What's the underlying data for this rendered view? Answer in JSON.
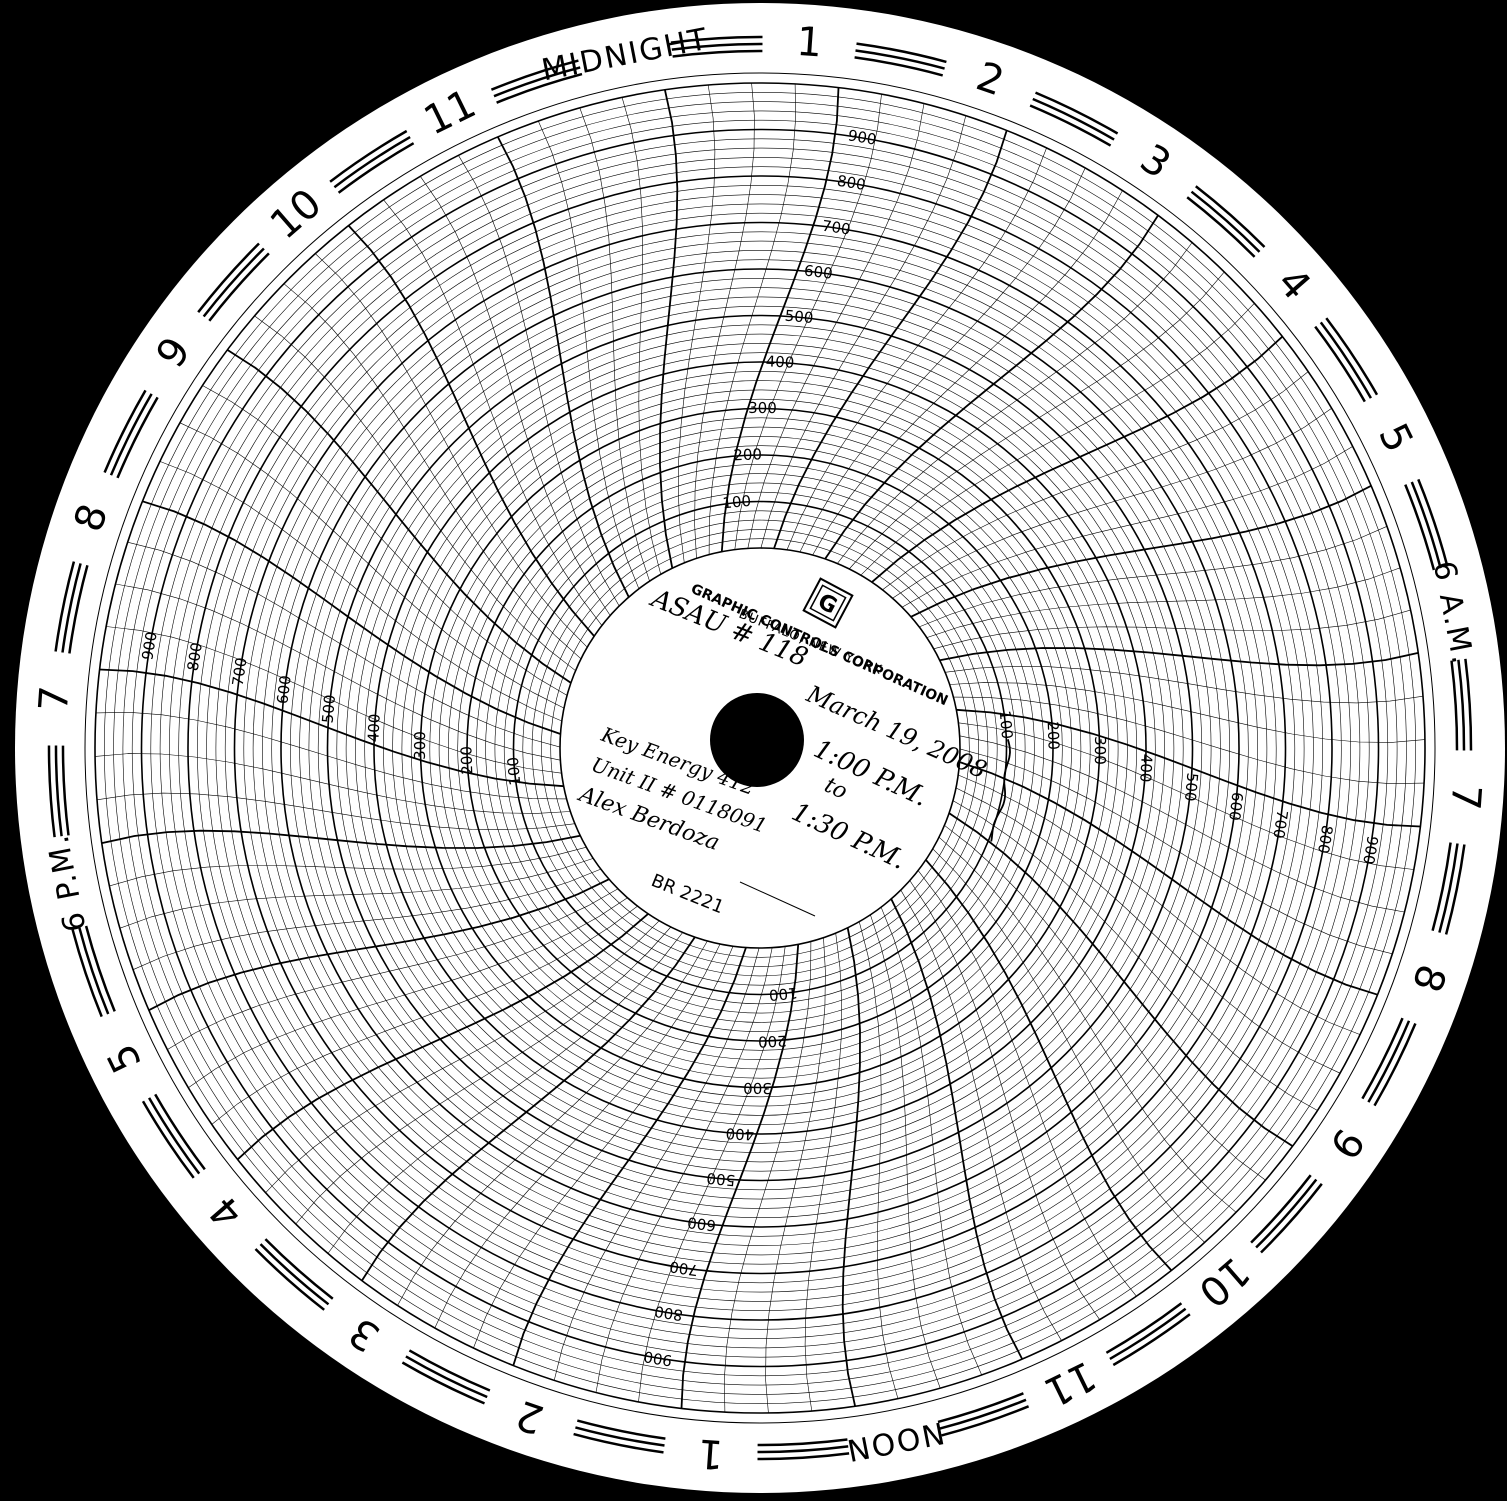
{
  "chart": {
    "hour_labels": [
      "MIDNIGHT",
      "1",
      "2",
      "3",
      "4",
      "5",
      "6 A.M.",
      "7",
      "8",
      "9",
      "10",
      "11",
      "NOON",
      "1",
      "2",
      "3",
      "4",
      "5",
      "6 P.M.",
      "7",
      "8",
      "9",
      "10",
      "11"
    ],
    "scale_values": [
      "100",
      "200",
      "300",
      "400",
      "500",
      "600",
      "700",
      "800",
      "900"
    ],
    "brand_line1": "GRAPHIC CONTROLS CORPORATION",
    "brand_line2": "BUFFALO, NEW YORK",
    "logo_letter": "G",
    "catalog_number": "BR 2221",
    "handwritten": {
      "asset": "ASAU # 118",
      "date": "March 19, 2008",
      "time_from": "1:00 P.M.",
      "time_to_word": "to",
      "time_to": "1:30 P.M.",
      "company": "Key Energy 412",
      "unit": "Unit II # 0118091",
      "operator": "Alex Berdoza"
    }
  }
}
